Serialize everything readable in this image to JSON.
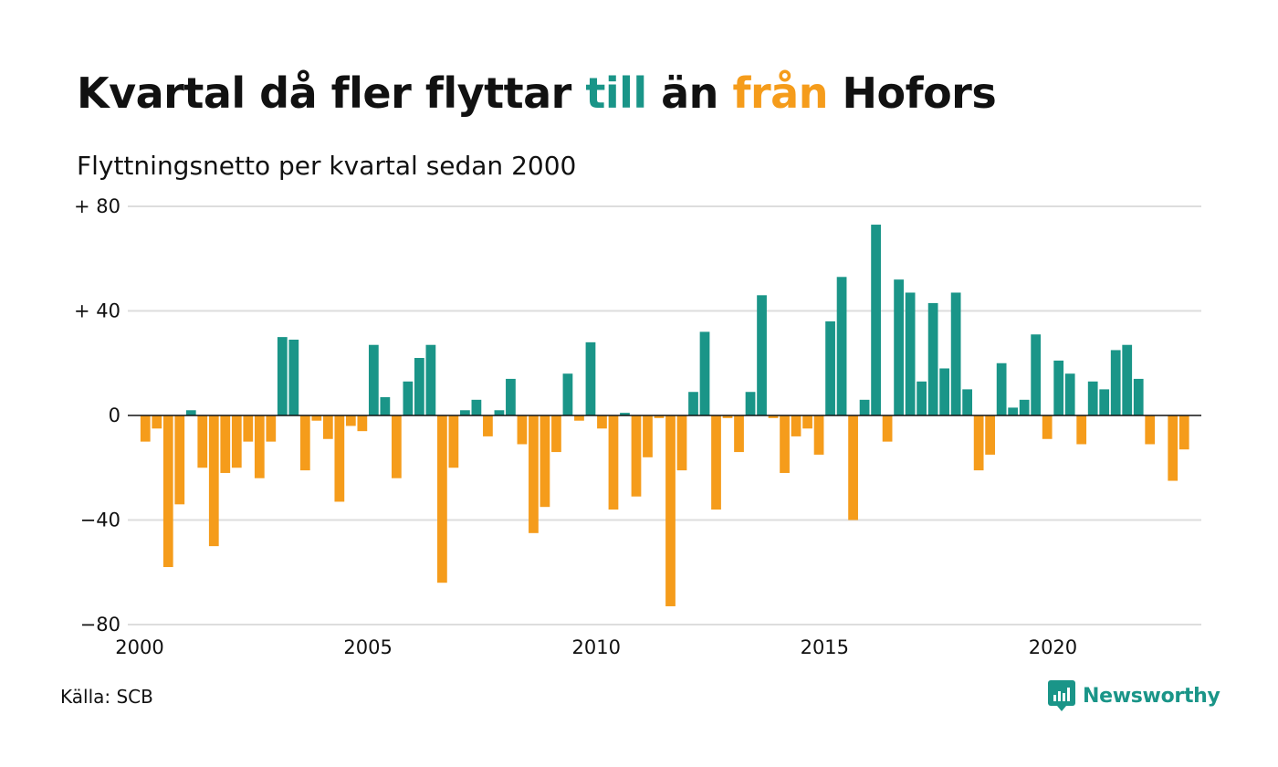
{
  "header": {
    "title_part1": "Kvartal då fler flyttar ",
    "title_till": "till",
    "title_part2": " än ",
    "title_fran": "från",
    "title_part3": " Hofors",
    "subtitle": "Flyttningsnetto per kvartal sedan 2000"
  },
  "footer": {
    "source": "Källa: SCB",
    "brand": "Newsworthy",
    "brand_icon": "newsworthy-logo-icon"
  },
  "colors": {
    "positive": "#1a9588",
    "negative": "#f59c1b",
    "grid": "#dddddd",
    "zero_line": "#111111"
  },
  "chart_data": {
    "type": "bar",
    "title": "Kvartal då fler flyttar till än från Hofors",
    "subtitle": "Flyttningsnetto per kvartal sedan 2000",
    "xlabel": "",
    "ylabel": "",
    "x_start": "2000-Q1",
    "x_ticks": [
      "2000",
      "2005",
      "2010",
      "2015",
      "2020"
    ],
    "y_ticks": [
      {
        "value": 80,
        "label": "+ 80"
      },
      {
        "value": 40,
        "label": "+ 40"
      },
      {
        "value": 0,
        "label": "0"
      },
      {
        "value": -40,
        "label": "−40"
      },
      {
        "value": -80,
        "label": "−80"
      }
    ],
    "ylim": [
      -80,
      80
    ],
    "grid": true,
    "categories": [
      "2000 Q1",
      "2000 Q2",
      "2000 Q3",
      "2000 Q4",
      "2001 Q1",
      "2001 Q2",
      "2001 Q3",
      "2001 Q4",
      "2002 Q1",
      "2002 Q2",
      "2002 Q3",
      "2002 Q4",
      "2003 Q1",
      "2003 Q2",
      "2003 Q3",
      "2003 Q4",
      "2004 Q1",
      "2004 Q2",
      "2004 Q3",
      "2004 Q4",
      "2005 Q1",
      "2005 Q2",
      "2005 Q3",
      "2005 Q4",
      "2006 Q1",
      "2006 Q2",
      "2006 Q3",
      "2006 Q4",
      "2007 Q1",
      "2007 Q2",
      "2007 Q3",
      "2007 Q4",
      "2008 Q1",
      "2008 Q2",
      "2008 Q3",
      "2008 Q4",
      "2009 Q1",
      "2009 Q2",
      "2009 Q3",
      "2009 Q4",
      "2010 Q1",
      "2010 Q2",
      "2010 Q3",
      "2010 Q4",
      "2011 Q1",
      "2011 Q2",
      "2011 Q3",
      "2011 Q4",
      "2012 Q1",
      "2012 Q2",
      "2012 Q3",
      "2012 Q4",
      "2013 Q1",
      "2013 Q2",
      "2013 Q3",
      "2013 Q4",
      "2014 Q1",
      "2014 Q2",
      "2014 Q3",
      "2014 Q4",
      "2015 Q1",
      "2015 Q2",
      "2015 Q3",
      "2015 Q4",
      "2016 Q1",
      "2016 Q2",
      "2016 Q3",
      "2016 Q4",
      "2017 Q1",
      "2017 Q2",
      "2017 Q3",
      "2017 Q4",
      "2018 Q1",
      "2018 Q2",
      "2018 Q3",
      "2018 Q4",
      "2019 Q1",
      "2019 Q2",
      "2019 Q3",
      "2019 Q4",
      "2020 Q1",
      "2020 Q2",
      "2020 Q3",
      "2020 Q4",
      "2021 Q1",
      "2021 Q2",
      "2021 Q3",
      "2021 Q4",
      "2022 Q1",
      "2022 Q2",
      "2022 Q3",
      "2022 Q4",
      "2023 Q1"
    ],
    "values": [
      -10,
      -5,
      -58,
      -34,
      2,
      -20,
      -50,
      -22,
      -20,
      -10,
      -24,
      -10,
      30,
      29,
      -21,
      -2,
      -9,
      -33,
      -4,
      -6,
      27,
      7,
      -24,
      13,
      22,
      27,
      -64,
      -20,
      2,
      6,
      -8,
      2,
      14,
      -11,
      -45,
      -35,
      -14,
      16,
      -2,
      28,
      -5,
      -36,
      1,
      -31,
      -16,
      -1,
      -73,
      -21,
      9,
      32,
      -36,
      -1,
      -14,
      9,
      46,
      -1,
      -22,
      -8,
      -5,
      -15,
      36,
      53,
      -40,
      6,
      73,
      -10,
      52,
      47,
      13,
      43,
      18,
      47,
      10,
      -21,
      -15,
      20,
      3,
      6,
      31,
      -9,
      21,
      16,
      -11,
      13,
      10,
      25,
      27,
      14,
      -11,
      0,
      -25,
      -13,
      0
    ]
  }
}
